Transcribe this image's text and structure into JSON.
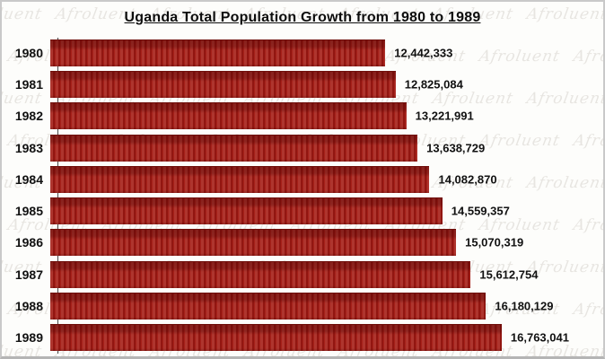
{
  "frame": {
    "background": "#fdfdfb",
    "border_color": "#c9c9c9"
  },
  "watermark": {
    "text": "Afroluent",
    "color": "#b8b1a8"
  },
  "chart_data": {
    "type": "bar",
    "orientation": "horizontal",
    "title": "Uganda Total Population Growth from 1980 to 1989",
    "categories": [
      "1980",
      "1981",
      "1982",
      "1983",
      "1984",
      "1985",
      "1986",
      "1987",
      "1988",
      "1989"
    ],
    "values": [
      12442333,
      12825084,
      13221991,
      13638729,
      14082870,
      14559357,
      15070319,
      15612754,
      16180129,
      16763041
    ],
    "value_labels": [
      "12,442,333",
      "12,825,084",
      "13,221,991",
      "13,638,729",
      "14,082,870",
      "14,559,357",
      "15,070,319",
      "15,612,754",
      "16,180,129",
      "16,763,041"
    ],
    "xlabel": "",
    "ylabel": "",
    "xlim": [
      0,
      20000000
    ],
    "grid": false,
    "legend": false,
    "bar_color": "#9e1b16",
    "data_label_position": "outside-end"
  }
}
